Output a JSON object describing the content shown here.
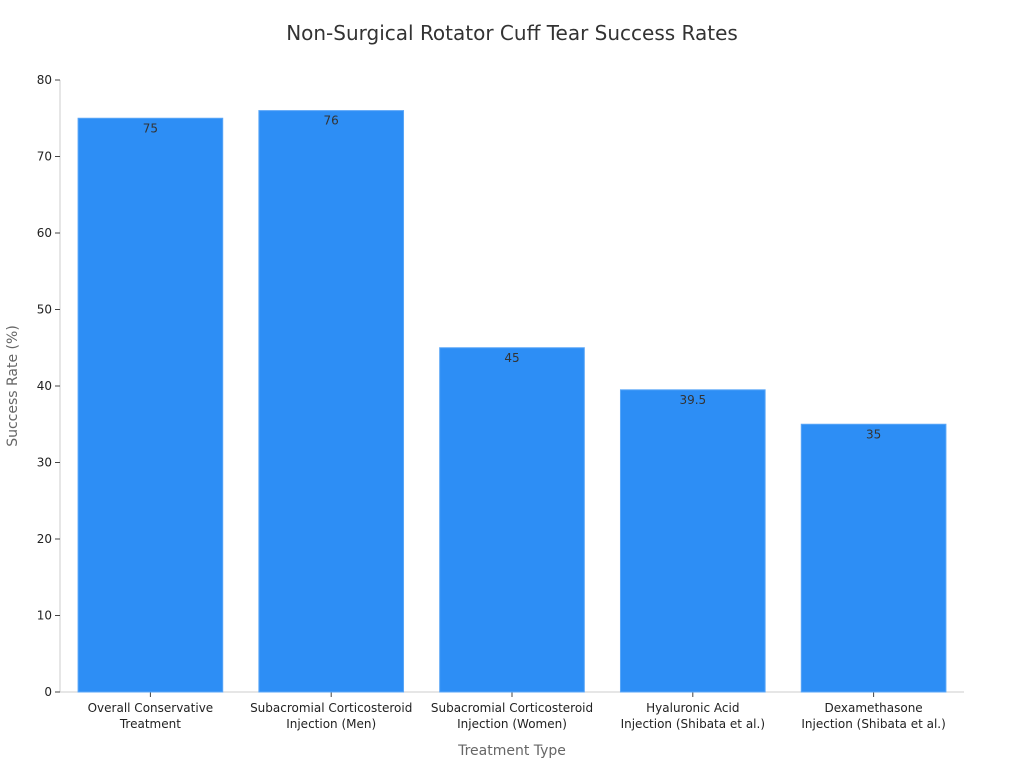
{
  "chart_data": {
    "type": "bar",
    "title": "Non-Surgical Rotator Cuff Tear Success Rates",
    "xlabel": "Treatment Type",
    "ylabel": "Success Rate (%)",
    "categories": [
      [
        "Overall Conservative",
        "Treatment"
      ],
      [
        "Subacromial Corticosteroid",
        "Injection (Men)"
      ],
      [
        "Subacromial Corticosteroid",
        "Injection (Women)"
      ],
      [
        "Hyaluronic Acid",
        "Injection (Shibata et al.)"
      ],
      [
        "Dexamethasone",
        "Injection (Shibata et al.)"
      ]
    ],
    "values": [
      75,
      76,
      45,
      39.5,
      35
    ],
    "value_labels": [
      "75",
      "76",
      "45",
      "39.5",
      "35"
    ],
    "ylim": [
      0,
      80
    ],
    "yticks": [
      0,
      10,
      20,
      30,
      40,
      50,
      60,
      70,
      80
    ],
    "grid": false,
    "legend": "none",
    "colors": {
      "bar": "#2d8ef5",
      "bar_edge": "#5aa6f7",
      "axis": "#cccccc"
    }
  }
}
